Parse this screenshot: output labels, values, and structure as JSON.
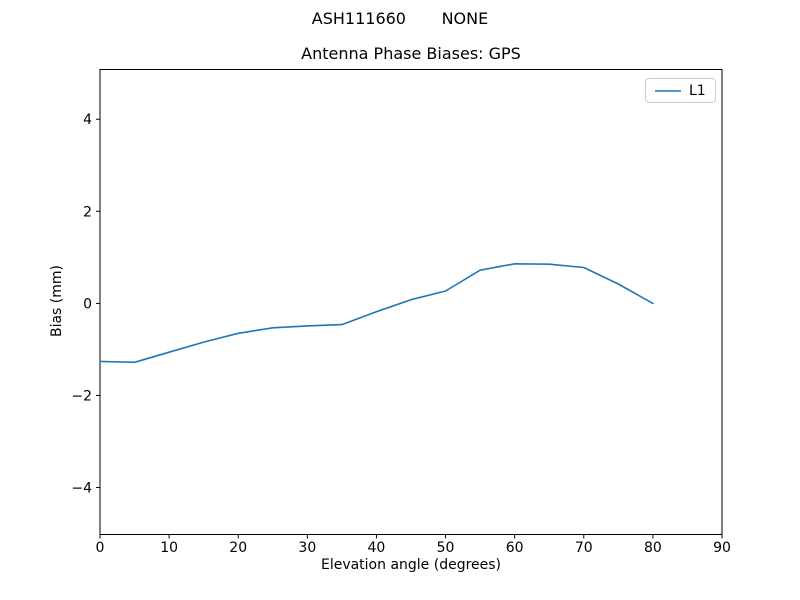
{
  "figure": {
    "background": "#ffffff",
    "text_color": "#000000"
  },
  "chart_data": {
    "type": "line",
    "suptitle": "ASH111660       NONE",
    "title": "Antenna Phase Biases: GPS",
    "xlabel": "Elevation angle (degrees)",
    "ylabel": "Bias (mm)",
    "xlim": [
      0,
      90
    ],
    "ylim": [
      -5.02,
      5.08
    ],
    "xticks": {
      "values": [
        0,
        10,
        20,
        30,
        40,
        50,
        60,
        70,
        80,
        90
      ],
      "labels": [
        "0",
        "10",
        "20",
        "30",
        "40",
        "50",
        "60",
        "70",
        "80",
        "90"
      ]
    },
    "yticks": {
      "values": [
        -4,
        -2,
        0,
        2,
        4
      ],
      "labels": [
        "−4",
        "−2",
        "0",
        "2",
        "4"
      ]
    },
    "grid": false,
    "axes_color": "#000000",
    "legend": {
      "position": "upper right",
      "entries": [
        {
          "label": "L1",
          "color": "#1f77b4"
        }
      ]
    },
    "series": [
      {
        "name": "L1",
        "color": "#1f77b4",
        "x": [
          0,
          5,
          10,
          15,
          20,
          25,
          30,
          35,
          40,
          45,
          50,
          55,
          60,
          65,
          70,
          75,
          80
        ],
        "y": [
          -1.26,
          -1.28,
          -1.06,
          -0.84,
          -0.65,
          -0.53,
          -0.49,
          -0.46,
          -0.18,
          0.08,
          0.27,
          0.72,
          0.86,
          0.85,
          0.78,
          0.42,
          0.0
        ]
      }
    ]
  }
}
